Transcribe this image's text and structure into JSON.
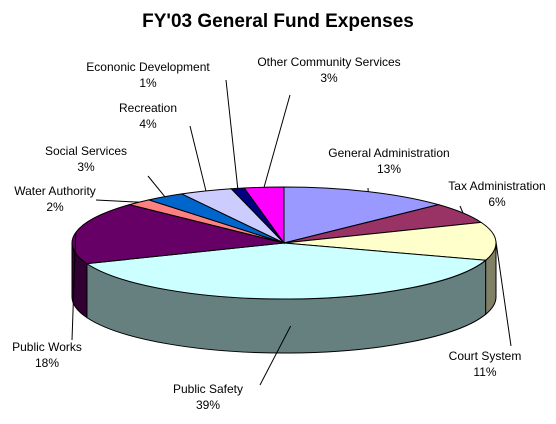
{
  "chart_data": {
    "type": "pie",
    "style": "3d",
    "title": "FY'03 General Fund Expenses",
    "slices": [
      {
        "name": "General Administration",
        "value": 13,
        "value_label": "13%",
        "color": "#9999FF",
        "side_color": "#4C4C80"
      },
      {
        "name": "Tax Administration",
        "value": 6,
        "value_label": "6%",
        "color": "#993366",
        "side_color": "#4C1A33"
      },
      {
        "name": "Court System",
        "value": 11,
        "value_label": "11%",
        "color": "#FFFFCC",
        "side_color": "#808066"
      },
      {
        "name": "Public Safety",
        "value": 39,
        "value_label": "39%",
        "color": "#CCFFFF",
        "side_color": "#668080"
      },
      {
        "name": "Public Works",
        "value": 18,
        "value_label": "18%",
        "color": "#660066",
        "side_color": "#330033"
      },
      {
        "name": "Water Authority",
        "value": 2,
        "value_label": "2%",
        "color": "#FF8080",
        "side_color": "#804040"
      },
      {
        "name": "Social Services",
        "value": 3,
        "value_label": "3%",
        "color": "#0066CC",
        "side_color": "#003366"
      },
      {
        "name": "Recreation",
        "value": 4,
        "value_label": "4%",
        "color": "#CCCCFF",
        "side_color": "#666680"
      },
      {
        "name": "Econonic Development",
        "value": 1,
        "value_label": "1%",
        "color": "#000080",
        "side_color": "#000040"
      },
      {
        "name": "Other Community Services",
        "value": 3,
        "value_label": "3%",
        "color": "#FF00FF",
        "side_color": "#800080"
      }
    ],
    "legend": "none",
    "labels": "outside with leader lines"
  }
}
